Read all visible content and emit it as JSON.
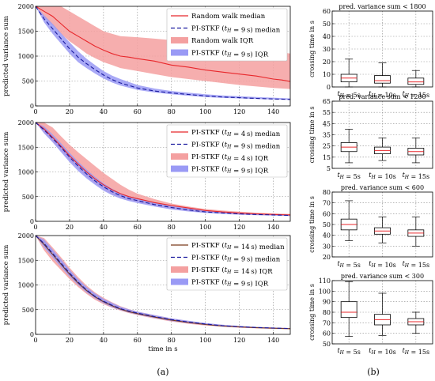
{
  "captions": [
    "(a)",
    "(b)"
  ],
  "chart_data": [
    {
      "type": "area",
      "ylabel": "predicted variance sum",
      "xlabel": "",
      "xlim": [
        0,
        150
      ],
      "ylim": [
        0,
        2000
      ],
      "xticks": [
        0,
        20,
        40,
        60,
        80,
        100,
        120,
        140
      ],
      "yticks": [
        0,
        500,
        1000,
        1500,
        2000
      ],
      "grid": true,
      "legend": "top-right",
      "series": [
        {
          "name": "Random walk median",
          "kind": "line",
          "color": "#e8272b",
          "dash": "solid",
          "x": [
            0,
            5,
            10,
            15,
            20,
            25,
            30,
            35,
            40,
            45,
            50,
            55,
            60,
            70,
            80,
            90,
            100,
            110,
            120,
            130,
            140,
            145,
            150
          ],
          "y": [
            2000,
            1900,
            1800,
            1650,
            1500,
            1400,
            1300,
            1200,
            1120,
            1050,
            1000,
            980,
            950,
            900,
            820,
            780,
            720,
            680,
            640,
            600,
            540,
            520,
            490
          ]
        },
        {
          "name": "PI-STKF ($t_H = 9\\,$s) median",
          "kind": "line",
          "color": "#1a1a9e",
          "dash": "dashed",
          "x": [
            0,
            5,
            10,
            15,
            20,
            25,
            30,
            35,
            40,
            45,
            50,
            60,
            70,
            80,
            90,
            100,
            110,
            120,
            130,
            140,
            150
          ],
          "y": [
            2000,
            1750,
            1550,
            1350,
            1150,
            980,
            850,
            730,
            620,
            530,
            460,
            360,
            300,
            260,
            230,
            200,
            180,
            165,
            150,
            140,
            130
          ]
        },
        {
          "name": "Random walk IQR",
          "kind": "band",
          "color": "#f4a0a0",
          "x": [
            0,
            5,
            10,
            15,
            20,
            25,
            30,
            35,
            40,
            45,
            50,
            60,
            70,
            80,
            90,
            100,
            110,
            120,
            130,
            140,
            150
          ],
          "lower": [
            2000,
            1780,
            1620,
            1450,
            1300,
            1180,
            1050,
            960,
            880,
            820,
            760,
            700,
            640,
            580,
            540,
            500,
            460,
            420,
            390,
            360,
            340
          ],
          "upper": [
            2000,
            2000,
            2000,
            2000,
            1900,
            1800,
            1700,
            1600,
            1500,
            1450,
            1400,
            1380,
            1350,
            1320,
            1300,
            1280,
            1250,
            1200,
            1150,
            1100,
            1050
          ]
        },
        {
          "name": "PI-STKF ($t_H = 9\\,$s) IQR",
          "kind": "band",
          "color": "#9a9af5",
          "x": [
            0,
            5,
            10,
            15,
            20,
            25,
            30,
            35,
            40,
            45,
            50,
            60,
            70,
            80,
            90,
            100,
            110,
            120,
            130,
            140,
            150
          ],
          "lower": [
            2000,
            1680,
            1450,
            1250,
            1050,
            880,
            760,
            650,
            550,
            470,
            410,
            320,
            270,
            235,
            205,
            180,
            160,
            150,
            140,
            128,
            120
          ],
          "upper": [
            2000,
            1820,
            1650,
            1460,
            1280,
            1100,
            950,
            820,
            700,
            610,
            540,
            420,
            350,
            300,
            265,
            235,
            210,
            195,
            180,
            165,
            150
          ]
        }
      ]
    },
    {
      "type": "area",
      "ylabel": "predicted variance sum",
      "xlabel": "",
      "xlim": [
        0,
        150
      ],
      "ylim": [
        0,
        2000
      ],
      "xticks": [
        0,
        20,
        40,
        60,
        80,
        100,
        120,
        140
      ],
      "yticks": [
        0,
        500,
        1000,
        1500,
        2000
      ],
      "grid": true,
      "legend": "top-right",
      "series": [
        {
          "name": "PI-STKF ($t_H = 4\\,$s) median",
          "kind": "line",
          "color": "#e8272b",
          "dash": "solid",
          "x": [
            0,
            5,
            10,
            15,
            20,
            25,
            30,
            35,
            40,
            45,
            50,
            55,
            60,
            70,
            80,
            90,
            100,
            110,
            120,
            130,
            140,
            150
          ],
          "y": [
            2000,
            1870,
            1700,
            1520,
            1330,
            1160,
            1000,
            860,
            740,
            640,
            560,
            500,
            460,
            380,
            320,
            270,
            220,
            190,
            170,
            150,
            140,
            130
          ]
        },
        {
          "name": "PI-STKF ($t_H = 9\\,$s) median",
          "kind": "line",
          "color": "#1a1a9e",
          "dash": "dashed",
          "x": [
            0,
            5,
            10,
            15,
            20,
            25,
            30,
            35,
            40,
            45,
            50,
            55,
            60,
            70,
            80,
            90,
            100,
            110,
            120,
            130,
            140,
            150
          ],
          "y": [
            2000,
            1850,
            1680,
            1500,
            1300,
            1120,
            960,
            820,
            700,
            600,
            520,
            460,
            420,
            340,
            280,
            230,
            190,
            170,
            150,
            140,
            130,
            120
          ]
        },
        {
          "name": "PI-STKF ($t_H = 4\\,$s) IQR",
          "kind": "band",
          "color": "#f4a0a0",
          "x": [
            0,
            5,
            10,
            15,
            20,
            25,
            30,
            35,
            40,
            45,
            50,
            55,
            60,
            70,
            80,
            90,
            100,
            110,
            120,
            130,
            140,
            150
          ],
          "lower": [
            2000,
            1800,
            1620,
            1430,
            1240,
            1070,
            910,
            770,
            650,
            550,
            480,
            430,
            390,
            320,
            260,
            210,
            180,
            160,
            140,
            130,
            120,
            110
          ],
          "upper": [
            2000,
            2000,
            1900,
            1720,
            1550,
            1400,
            1260,
            1120,
            980,
            860,
            740,
            640,
            560,
            450,
            360,
            300,
            250,
            220,
            195,
            175,
            160,
            150
          ]
        },
        {
          "name": "PI-STKF ($t_H = 9\\,$s) IQR",
          "kind": "band",
          "color": "#9a9af5",
          "x": [
            0,
            5,
            10,
            15,
            20,
            25,
            30,
            35,
            40,
            45,
            50,
            55,
            60,
            70,
            80,
            90,
            100,
            110,
            120,
            130,
            140,
            150
          ],
          "lower": [
            2000,
            1780,
            1600,
            1400,
            1200,
            1020,
            870,
            740,
            620,
            530,
            460,
            410,
            370,
            300,
            240,
            200,
            170,
            150,
            135,
            125,
            115,
            105
          ],
          "upper": [
            2000,
            1920,
            1760,
            1580,
            1390,
            1210,
            1050,
            900,
            770,
            660,
            570,
            510,
            460,
            380,
            310,
            260,
            220,
            190,
            170,
            155,
            145,
            135
          ]
        }
      ]
    },
    {
      "type": "area",
      "ylabel": "predicted variance sum",
      "xlabel": "time in s",
      "xlim": [
        0,
        150
      ],
      "ylim": [
        0,
        2000
      ],
      "xticks": [
        0,
        20,
        40,
        60,
        80,
        100,
        120,
        140
      ],
      "yticks": [
        0,
        500,
        1000,
        1500,
        2000
      ],
      "grid": true,
      "legend": "top-right",
      "series": [
        {
          "name": "PI-STKF ($t_H = 14\\,$s) median",
          "kind": "line",
          "color": "#7a3a1a",
          "dash": "solid",
          "x": [
            0,
            5,
            10,
            15,
            20,
            25,
            30,
            35,
            40,
            45,
            50,
            55,
            60,
            70,
            80,
            90,
            100,
            110,
            120,
            130,
            140,
            150
          ],
          "y": [
            2000,
            1820,
            1620,
            1420,
            1220,
            1040,
            890,
            760,
            660,
            580,
            510,
            460,
            420,
            350,
            290,
            240,
            200,
            170,
            150,
            135,
            125,
            115
          ]
        },
        {
          "name": "PI-STKF ($t_H = 9\\,$s) median",
          "kind": "line",
          "color": "#1a1a9e",
          "dash": "dashed",
          "x": [
            0,
            5,
            10,
            15,
            20,
            25,
            30,
            35,
            40,
            45,
            50,
            55,
            60,
            70,
            80,
            90,
            100,
            110,
            120,
            130,
            140,
            150
          ],
          "y": [
            2000,
            1840,
            1640,
            1440,
            1240,
            1060,
            900,
            770,
            670,
            590,
            520,
            470,
            430,
            360,
            300,
            250,
            210,
            175,
            155,
            140,
            128,
            118
          ]
        },
        {
          "name": "PI-STKF ($t_H = 14\\,$s) IQR",
          "kind": "band",
          "color": "#f4a0a0",
          "x": [
            0,
            5,
            10,
            15,
            20,
            25,
            30,
            35,
            40,
            45,
            50,
            55,
            60,
            70,
            80,
            90,
            100,
            110,
            120,
            130,
            140,
            150
          ],
          "lower": [
            2000,
            1700,
            1480,
            1300,
            1120,
            960,
            820,
            700,
            610,
            540,
            480,
            430,
            390,
            320,
            260,
            215,
            180,
            155,
            135,
            122,
            112,
            104
          ],
          "upper": [
            2000,
            1950,
            1760,
            1560,
            1350,
            1160,
            990,
            850,
            740,
            650,
            570,
            510,
            460,
            390,
            325,
            270,
            225,
            190,
            168,
            150,
            138,
            128
          ]
        },
        {
          "name": "PI-STKF ($t_H = 9\\,$s) IQR",
          "kind": "band",
          "color": "#9a9af5",
          "x": [
            0,
            5,
            10,
            15,
            20,
            25,
            30,
            35,
            40,
            45,
            50,
            55,
            60,
            70,
            80,
            90,
            100,
            110,
            120,
            130,
            140,
            150
          ],
          "lower": [
            2000,
            1760,
            1560,
            1360,
            1170,
            1000,
            850,
            730,
            630,
            550,
            490,
            440,
            400,
            330,
            270,
            225,
            190,
            160,
            140,
            128,
            117,
            108
          ],
          "upper": [
            2000,
            1920,
            1720,
            1520,
            1310,
            1120,
            960,
            830,
            720,
            640,
            560,
            505,
            460,
            390,
            325,
            275,
            230,
            195,
            170,
            152,
            138,
            128
          ]
        }
      ]
    },
    {
      "type": "box",
      "title": "pred. variance sum < 1800",
      "ylabel": "crossing time in s",
      "ylim": [
        0,
        60
      ],
      "yticks": [
        0,
        10,
        20,
        30,
        40,
        50,
        60
      ],
      "categories": [
        "$t_H = 5$s",
        "$t_H = 10$s",
        "$t_H = 15$s"
      ],
      "boxes": [
        {
          "min": 0,
          "q1": 4,
          "median": 7,
          "q3": 10,
          "max": 22
        },
        {
          "min": 0,
          "q1": 3,
          "median": 5,
          "q3": 9,
          "max": 19
        },
        {
          "min": 0,
          "q1": 2,
          "median": 4,
          "q3": 7,
          "max": 13
        }
      ]
    },
    {
      "type": "box",
      "title": "pred. variance sum < 1200",
      "ylabel": "crossing time in s",
      "ylim": [
        5,
        65
      ],
      "yticks": [
        5,
        15,
        25,
        35,
        45,
        55,
        65
      ],
      "categories": [
        "$t_H = 5$s",
        "$t_H = 10$s",
        "$t_H = 15$s"
      ],
      "boxes": [
        {
          "min": 10,
          "q1": 20,
          "median": 24,
          "q3": 28,
          "max": 40
        },
        {
          "min": 12,
          "q1": 18,
          "median": 21,
          "q3": 24,
          "max": 32
        },
        {
          "min": 10,
          "q1": 17,
          "median": 20,
          "q3": 23,
          "max": 32
        }
      ]
    },
    {
      "type": "box",
      "title": "pred. variance sum < 600",
      "ylabel": "crossing time in s",
      "ylim": [
        20,
        80
      ],
      "yticks": [
        20,
        30,
        40,
        50,
        60,
        70,
        80
      ],
      "categories": [
        "$t_H = 5$s",
        "$t_H = 10$s",
        "$t_H = 15$s"
      ],
      "boxes": [
        {
          "min": 35,
          "q1": 45,
          "median": 50,
          "q3": 55,
          "max": 72
        },
        {
          "min": 33,
          "q1": 41,
          "median": 44,
          "q3": 47,
          "max": 57
        },
        {
          "min": 30,
          "q1": 39,
          "median": 42,
          "q3": 45,
          "max": 57
        }
      ]
    },
    {
      "type": "box",
      "title": "pred. variance sum < 300",
      "ylabel": "crossing time in s",
      "ylim": [
        50,
        110
      ],
      "yticks": [
        50,
        60,
        70,
        80,
        90,
        100,
        110
      ],
      "categories": [
        "$t_H = 5$s",
        "$t_H = 10$s",
        "$t_H = 15$s"
      ],
      "boxes": [
        {
          "min": 57,
          "q1": 75,
          "median": 80,
          "q3": 90,
          "max": 109
        },
        {
          "min": 58,
          "q1": 68,
          "median": 73,
          "q3": 78,
          "max": 98
        },
        {
          "min": 60,
          "q1": 68,
          "median": 71,
          "q3": 74,
          "max": 80
        }
      ]
    }
  ]
}
